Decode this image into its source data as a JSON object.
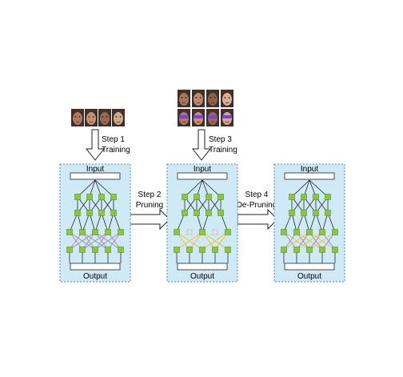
{
  "steps": [
    {
      "line1": "Step 1",
      "line2": "Training"
    },
    {
      "line1": "Step 2",
      "line2": "Pruning"
    },
    {
      "line1": "Step 3",
      "line2": "Training"
    },
    {
      "line1": "Step 4",
      "line2": "De-Pruning"
    }
  ],
  "networks": [
    {
      "input_label": "Input",
      "output_label": "Output",
      "state": "trained"
    },
    {
      "input_label": "Input",
      "output_label": "Output",
      "state": "pruned"
    },
    {
      "input_label": "Input",
      "output_label": "Output",
      "state": "de-pruned"
    }
  ],
  "colors": {
    "panel_fill": "#cfe9f7",
    "panel_border": "#4a8fb8",
    "node": "#8cc63f",
    "node_border": "#5b8f1e",
    "edge": "#111111",
    "edge_purple": "#a78bd0",
    "edge_yellow": "#f2c12e",
    "pruned_node": "#f0a030",
    "mask": "#7b3fe4"
  },
  "face_tones": [
    "#b07a5a",
    "#c89270",
    "#9a6a50",
    "#d3a886",
    "#a87658",
    "#c08a6a",
    "#8e6048",
    "#d8b090"
  ],
  "icons": {
    "down_arrow": "hollow-down-arrow",
    "right_arrow": "hollow-right-arrow",
    "face": "face-photo"
  }
}
